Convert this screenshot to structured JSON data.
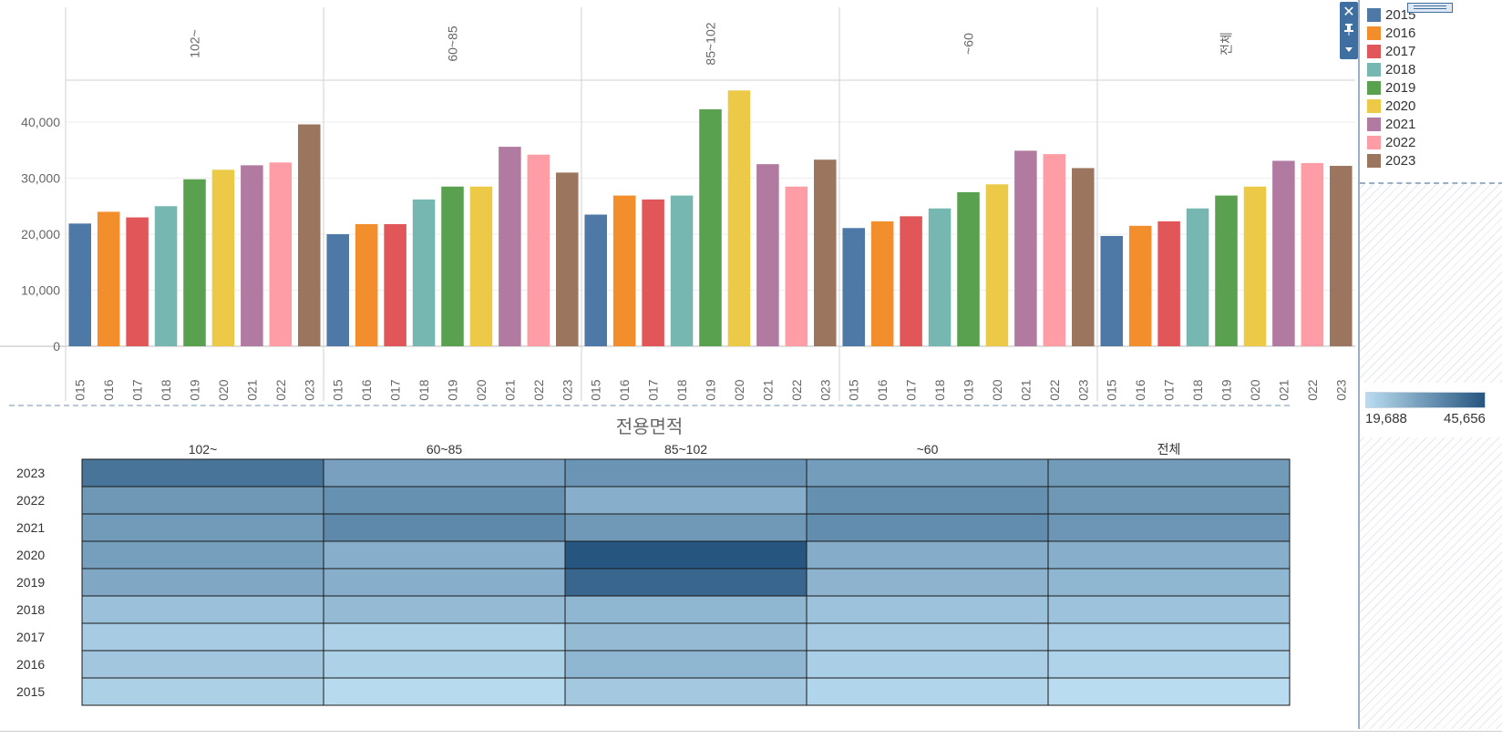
{
  "chart_data": [
    {
      "type": "bar",
      "panels": [
        "102~",
        "60~85",
        "85~102",
        "~60",
        "전체"
      ],
      "categories": [
        "2015",
        "2016",
        "2017",
        "2018",
        "2019",
        "2020",
        "2021",
        "2022",
        "2023"
      ],
      "y_ticks": [
        "40,000",
        "30,000",
        "20,000",
        "10,000",
        "0"
      ],
      "ylim": [
        0,
        47000
      ],
      "grid": true,
      "legend_placement": "right",
      "series_colors": [
        "#4e79a7",
        "#f28e2b",
        "#e15759",
        "#76b7b2",
        "#59a14f",
        "#edc948",
        "#b07aa1",
        "#ff9da7",
        "#9c755f"
      ],
      "values": [
        [
          21900,
          24000,
          23000,
          25000,
          29800,
          31500,
          32300,
          32800,
          39600
        ],
        [
          20000,
          21800,
          21800,
          26200,
          28500,
          28500,
          35600,
          34200,
          31000
        ],
        [
          23500,
          26900,
          26200,
          26900,
          42300,
          45656,
          32500,
          28500,
          33300
        ],
        [
          21100,
          22300,
          23200,
          24600,
          27500,
          28900,
          34900,
          34300,
          31800
        ],
        [
          19688,
          21500,
          22300,
          24600,
          26900,
          28500,
          33100,
          32700,
          32200
        ]
      ]
    },
    {
      "type": "heatmap",
      "title": "전용면적",
      "columns": [
        "102~",
        "60~85",
        "85~102",
        "~60",
        "전체"
      ],
      "rows": [
        "2023",
        "2022",
        "2021",
        "2020",
        "2019",
        "2018",
        "2017",
        "2016",
        "2015"
      ],
      "color_range": [
        19688,
        45656
      ],
      "color_low": "#b9dcf0",
      "color_high": "#26557f",
      "values": [
        [
          39600,
          31000,
          33300,
          31800,
          32200
        ],
        [
          32800,
          34200,
          28500,
          34300,
          32700
        ],
        [
          32300,
          35600,
          32500,
          34900,
          33100
        ],
        [
          31500,
          28500,
          45656,
          28900,
          28500
        ],
        [
          29800,
          28500,
          42300,
          27500,
          26900
        ],
        [
          25000,
          26200,
          26900,
          24600,
          24600
        ],
        [
          23000,
          21800,
          26200,
          23200,
          22300
        ],
        [
          24000,
          21800,
          26900,
          22300,
          21500
        ],
        [
          21900,
          20000,
          23500,
          21100,
          19688
        ]
      ]
    }
  ],
  "legend": {
    "items": [
      {
        "label": "2015",
        "color": "#4e79a7"
      },
      {
        "label": "2016",
        "color": "#f28e2b"
      },
      {
        "label": "2017",
        "color": "#e15759"
      },
      {
        "label": "2018",
        "color": "#76b7b2"
      },
      {
        "label": "2019",
        "color": "#59a14f"
      },
      {
        "label": "2020",
        "color": "#edc948"
      },
      {
        "label": "2021",
        "color": "#b07aa1"
      },
      {
        "label": "2022",
        "color": "#ff9da7"
      },
      {
        "label": "2023",
        "color": "#9c755f"
      }
    ],
    "gradient_min": "19,688",
    "gradient_max": "45,656"
  },
  "toolbar": {
    "close_icon": "close-icon",
    "pin_icon": "pin-icon",
    "menu_icon": "chevron-down-icon"
  }
}
